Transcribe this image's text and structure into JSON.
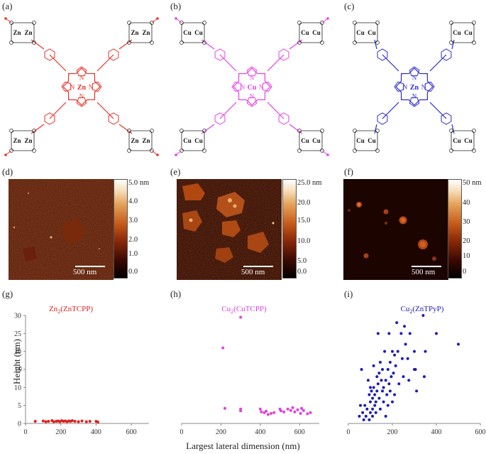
{
  "panels": {
    "a": "(a)",
    "b": "(b)",
    "c": "(c)",
    "d": "(d)",
    "e": "(e)",
    "f": "(f)",
    "g": "(g)",
    "h": "(h)",
    "i": "(i)"
  },
  "molecules": {
    "a": {
      "metal": "Zn",
      "core_metal": "Zn",
      "color": "#e8322a",
      "ring_labels": [
        "N",
        "N",
        "N",
        "N"
      ]
    },
    "b": {
      "metal": "Cu",
      "core_metal": "Cu",
      "color": "#e83ee8",
      "ring_labels": [
        "N",
        "N",
        "N",
        "N"
      ]
    },
    "c": {
      "metal": "Cu",
      "core_metal": "Zn",
      "color": "#2a2ad0",
      "ring_labels": [
        "N",
        "N",
        "N",
        "N"
      ]
    }
  },
  "afm": {
    "d": {
      "scale_label": "500 nm",
      "colorbar_ticks": [
        "5.0 nm",
        "4.0",
        "3.0",
        "2.0",
        "1.0",
        "0.0"
      ]
    },
    "e": {
      "scale_label": "500 nm",
      "colorbar_ticks": [
        "25.0 nm",
        "20.0",
        "15.0",
        "10.0",
        "5.0",
        "0.0"
      ]
    },
    "f": {
      "scale_label": "500 nm",
      "colorbar_ticks": [
        "50 nm",
        "40",
        "30",
        "20",
        "10",
        "0"
      ]
    }
  },
  "axes": {
    "ylabel": "Height (nm)",
    "xlabel": "Largest lateral dimension (nm)"
  },
  "chart_data": [
    {
      "type": "scatter",
      "title": "Zn2(ZnTCPP)",
      "title_main": "Zn",
      "title_sub": "2",
      "title_rest": "(ZnTCPP)",
      "color": "#e0201c",
      "xlim": [
        0,
        700
      ],
      "ylim": [
        0,
        30
      ],
      "xticks": [
        "0",
        "200",
        "400",
        "600"
      ],
      "yticks": [
        "0",
        "5",
        "10",
        "15",
        "20",
        "25",
        "30"
      ],
      "points": [
        [
          55,
          0.6
        ],
        [
          100,
          0.7
        ],
        [
          115,
          0.5
        ],
        [
          130,
          0.6
        ],
        [
          150,
          0.8
        ],
        [
          160,
          0.5
        ],
        [
          175,
          0.6
        ],
        [
          185,
          0.7
        ],
        [
          195,
          0.5
        ],
        [
          205,
          0.8
        ],
        [
          215,
          0.6
        ],
        [
          225,
          0.7
        ],
        [
          235,
          0.5
        ],
        [
          245,
          0.7
        ],
        [
          255,
          0.6
        ],
        [
          265,
          0.8
        ],
        [
          280,
          0.6
        ],
        [
          300,
          0.5
        ],
        [
          320,
          0.7
        ],
        [
          345,
          0.5
        ],
        [
          365,
          0.6
        ],
        [
          400,
          0.6
        ],
        [
          410,
          0.4
        ]
      ]
    },
    {
      "type": "scatter",
      "title": "Cu2(CuTCPP)",
      "title_main": "Cu",
      "title_sub": "2",
      "title_rest": "(CuTCPP)",
      "color": "#e040e0",
      "xlim": [
        0,
        700
      ],
      "ylim": [
        0,
        30
      ],
      "xticks": [
        "0",
        "200",
        "400",
        "600"
      ],
      "yticks": [
        "0",
        "5",
        "10",
        "15",
        "20",
        "25",
        "30"
      ],
      "points": [
        [
          210,
          21
        ],
        [
          220,
          4.2
        ],
        [
          300,
          29.5
        ],
        [
          300,
          4
        ],
        [
          300,
          3.5
        ],
        [
          400,
          4
        ],
        [
          405,
          3.2
        ],
        [
          420,
          3
        ],
        [
          430,
          3.4
        ],
        [
          440,
          2.5
        ],
        [
          455,
          2.8
        ],
        [
          470,
          3
        ],
        [
          500,
          4
        ],
        [
          505,
          3.5
        ],
        [
          520,
          3.2
        ],
        [
          540,
          4
        ],
        [
          555,
          3.6
        ],
        [
          565,
          4.4
        ],
        [
          575,
          3.2
        ],
        [
          590,
          3.8
        ],
        [
          605,
          2.8
        ],
        [
          610,
          4.2
        ],
        [
          620,
          3.6
        ],
        [
          640,
          2.7
        ],
        [
          655,
          3
        ]
      ]
    },
    {
      "type": "scatter",
      "title": "Cu2(ZnTPyP)",
      "title_main": "Cu",
      "title_sub": "2",
      "title_rest": "(ZnTPyP)",
      "color": "#1c1cb8",
      "xlim": [
        0,
        600
      ],
      "ylim": [
        0,
        30
      ],
      "xticks": [
        "0",
        "200",
        "400",
        "600"
      ],
      "yticks": [
        "0",
        "5",
        "10",
        "15",
        "20",
        "25",
        "30"
      ],
      "points": [
        [
          50,
          2
        ],
        [
          55,
          5
        ],
        [
          60,
          15
        ],
        [
          65,
          3
        ],
        [
          70,
          1
        ],
        [
          75,
          5
        ],
        [
          80,
          2
        ],
        [
          85,
          4
        ],
        [
          90,
          12
        ],
        [
          95,
          8
        ],
        [
          95,
          1
        ],
        [
          100,
          10
        ],
        [
          100,
          6
        ],
        [
          100,
          3
        ],
        [
          105,
          9
        ],
        [
          110,
          7
        ],
        [
          110,
          4
        ],
        [
          110,
          2
        ],
        [
          115,
          16
        ],
        [
          115,
          10
        ],
        [
          120,
          8
        ],
        [
          120,
          5
        ],
        [
          125,
          6
        ],
        [
          125,
          3
        ],
        [
          130,
          9
        ],
        [
          130,
          13
        ],
        [
          135,
          25
        ],
        [
          135,
          11
        ],
        [
          140,
          14
        ],
        [
          140,
          7
        ],
        [
          145,
          17
        ],
        [
          145,
          4
        ],
        [
          150,
          12
        ],
        [
          155,
          15
        ],
        [
          155,
          9
        ],
        [
          160,
          10
        ],
        [
          160,
          6
        ],
        [
          165,
          20
        ],
        [
          170,
          12
        ],
        [
          170,
          2
        ],
        [
          175,
          8
        ],
        [
          180,
          15
        ],
        [
          180,
          5
        ],
        [
          185,
          11
        ],
        [
          185,
          25
        ],
        [
          190,
          17
        ],
        [
          190,
          9
        ],
        [
          195,
          13
        ],
        [
          200,
          20
        ],
        [
          200,
          6
        ],
        [
          205,
          14
        ],
        [
          210,
          19
        ],
        [
          210,
          8
        ],
        [
          215,
          16
        ],
        [
          220,
          28
        ],
        [
          225,
          20
        ],
        [
          230,
          11
        ],
        [
          240,
          25
        ],
        [
          245,
          18
        ],
        [
          250,
          13
        ],
        [
          255,
          27
        ],
        [
          260,
          22
        ],
        [
          270,
          18
        ],
        [
          275,
          12
        ],
        [
          280,
          25
        ],
        [
          300,
          20
        ],
        [
          300,
          15
        ],
        [
          305,
          15
        ],
        [
          310,
          9
        ],
        [
          340,
          30
        ],
        [
          345,
          13
        ],
        [
          350,
          20
        ],
        [
          400,
          25
        ],
        [
          500,
          22
        ]
      ]
    }
  ]
}
